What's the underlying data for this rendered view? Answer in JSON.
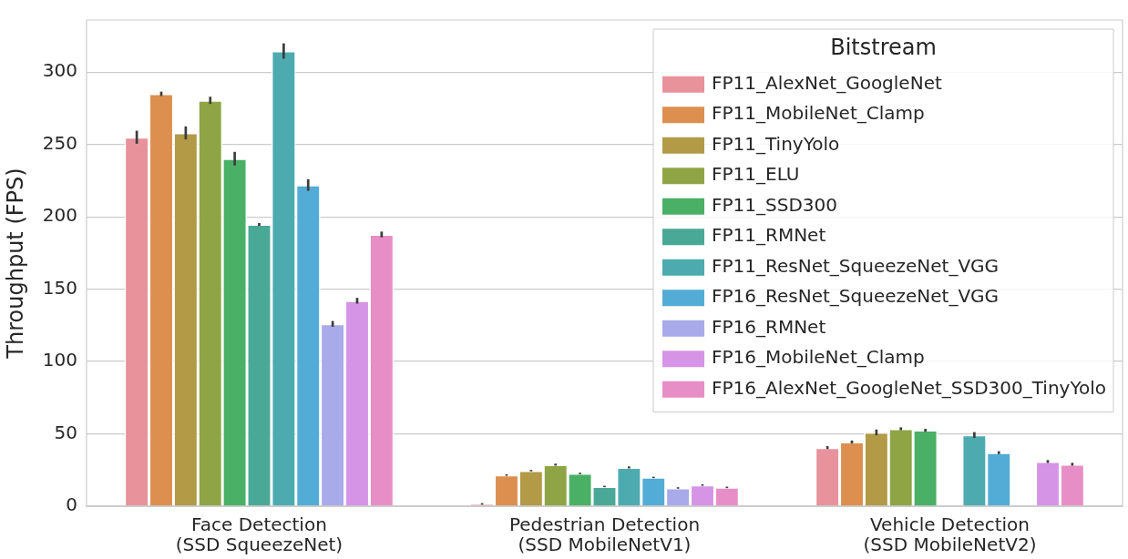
{
  "chart_data": {
    "type": "bar",
    "ylabel": "Throughput (FPS)",
    "legend_title": "Bitstream",
    "legend": "top right",
    "grid": "y",
    "categories": [
      "Face Detection\n(SSD SqueezeNet)",
      "Pedestrian Detection\n(SSD MobileNetV1)",
      "Vehicle Detection\n(SSD MobileNetV2)"
    ],
    "ylim": [
      0,
      336
    ],
    "yticks": [
      0,
      50,
      100,
      150,
      200,
      250,
      300
    ],
    "series": [
      {
        "name": "FP11_AlexNet_GoogleNet",
        "color": "#e8929c",
        "values": [
          255,
          1.6,
          40.5
        ],
        "errors": [
          4.5,
          0.5,
          1
        ]
      },
      {
        "name": "FP11_MobileNet_Clamp",
        "color": "#dc8f4f",
        "values": [
          285,
          21.5,
          44.4
        ],
        "errors": [
          1.5,
          0.5,
          1
        ]
      },
      {
        "name": "FP11_TinyYolo",
        "color": "#b29a46",
        "values": [
          258,
          24.6,
          51
        ],
        "errors": [
          4.5,
          0.5,
          2
        ]
      },
      {
        "name": "FP11_ELU",
        "color": "#8fa545",
        "values": [
          280.5,
          28.7,
          53.5
        ],
        "errors": [
          2.5,
          0.7,
          1
        ]
      },
      {
        "name": "FP11_SSD300",
        "color": "#49b065",
        "values": [
          240.2,
          22.6,
          52.5
        ],
        "errors": [
          4.7,
          0.5,
          1
        ]
      },
      {
        "name": "FP11_RMNet",
        "color": "#4aa996",
        "values": [
          194.7,
          13.6,
          null
        ],
        "errors": [
          1,
          0.5,
          null
        ]
      },
      {
        "name": "FP11_ResNet_SqueezeNet_VGG",
        "color": "#4dabb0",
        "values": [
          314.6,
          26.8,
          49.2
        ],
        "errors": [
          5.3,
          0.7,
          2
        ]
      },
      {
        "name": "FP16_ResNet_SqueezeNet_VGG",
        "color": "#53acd5",
        "values": [
          222,
          19.9,
          37
        ],
        "errors": [
          4,
          0.5,
          1
        ]
      },
      {
        "name": "FP16_RMNet",
        "color": "#a8aaea",
        "values": [
          126,
          12.6,
          null
        ],
        "errors": [
          2,
          0.5,
          null
        ]
      },
      {
        "name": "FP16_MobileNet_Clamp",
        "color": "#d594e6",
        "values": [
          142,
          14.6,
          30.9
        ],
        "errors": [
          2,
          0.5,
          1
        ]
      },
      {
        "name": "FP16_AlexNet_GoogleNet_SSD300_TinyYolo",
        "color": "#e88ec6",
        "values": [
          187.8,
          13,
          29
        ],
        "errors": [
          2,
          0.5,
          1
        ]
      }
    ]
  }
}
